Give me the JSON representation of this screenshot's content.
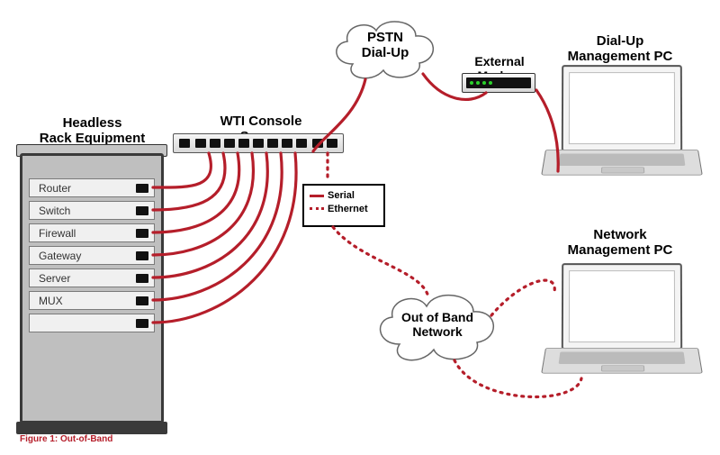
{
  "colors": {
    "cable": "#b51e2a",
    "frame": "#3a3a3a",
    "neutral": "#bfbfbf",
    "cloud_stroke": "#666666",
    "cloud_fill": "#ffffff",
    "text": "#000000"
  },
  "rack": {
    "title": "Headless\nRack Equipment",
    "slots": [
      "Router",
      "Switch",
      "Firewall",
      "Gateway",
      "Server",
      "MUX",
      ""
    ]
  },
  "wti": {
    "title": "WTI Console Server"
  },
  "clouds": {
    "pstn": {
      "line1": "PSTN",
      "line2": "Dial-Up"
    },
    "oob": {
      "line1": "Out of Band",
      "line2": "Network"
    }
  },
  "modem": {
    "title": "External Modem"
  },
  "legend": {
    "serial": "Serial",
    "ethernet": "Ethernet"
  },
  "laptops": {
    "dialup": "Dial-Up\nManagement PC",
    "net": "Network\nManagement PC"
  },
  "cables": {
    "solid_width": 3.2,
    "dot_width": 3.2,
    "dot_pattern": "2,6"
  },
  "footer": {
    "text": "Figure 1: Out-of-Band"
  }
}
